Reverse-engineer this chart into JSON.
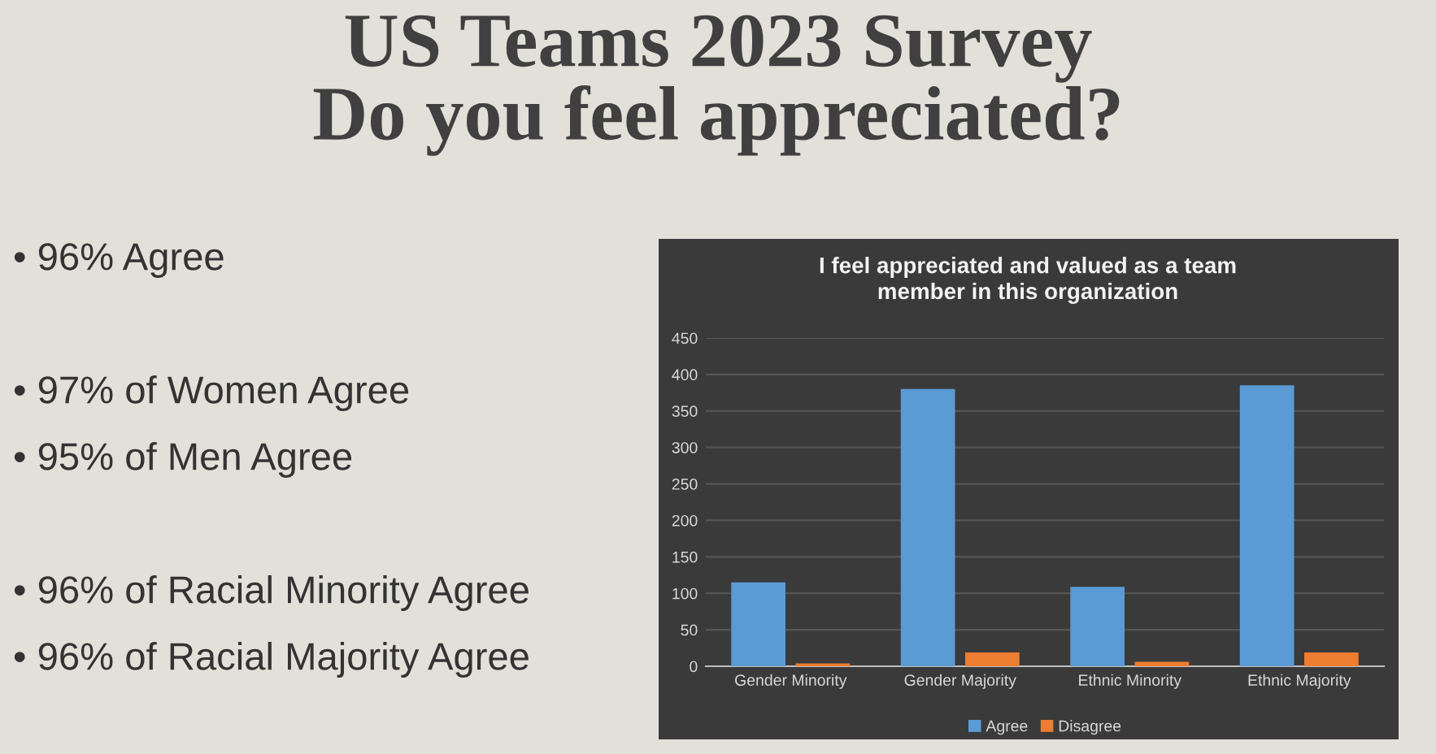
{
  "chart_data": {
    "type": "bar",
    "title": "US Teams 2023 Survey\nDo you feel appreciated?",
    "subtitle": "I feel appreciated and valued as a team\nmember in this organization",
    "categories": [
      "Gender Minority",
      "Gender Majority",
      "Ethnic Minority",
      "Ethnic Majority"
    ],
    "series": [
      {
        "name": "Agree",
        "color": "#5b9bd5",
        "values": [
          115,
          380,
          109,
          385
        ]
      },
      {
        "name": "Disagree",
        "color": "#ed7d31",
        "values": [
          4,
          19,
          6,
          19
        ]
      }
    ],
    "ylim": [
      0,
      450
    ],
    "yticks": [
      0,
      50,
      100,
      150,
      200,
      250,
      300,
      350,
      400,
      450
    ],
    "grid": "y",
    "legend": "bottom",
    "annotations": [
      "• 96% Agree",
      "• 97% of Women Agree",
      "• 95% of Men Agree",
      "• 96% of Racial Minority Agree",
      "• 96% of Racial Majority Agree"
    ]
  }
}
